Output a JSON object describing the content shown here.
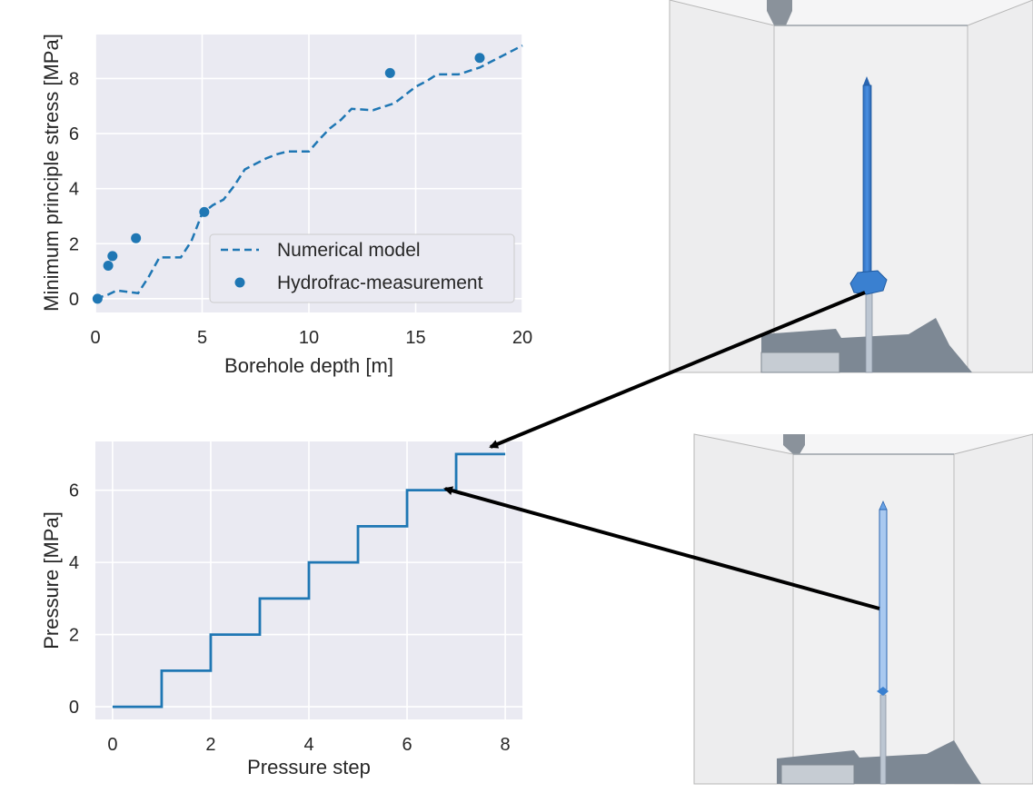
{
  "chart_data": [
    {
      "type": "line",
      "xlabel": "Borehole depth [m]",
      "ylabel": "Minimum principle stress [MPa]",
      "xlim": [
        0,
        20
      ],
      "ylim": [
        -0.5,
        9.6
      ],
      "xticks": [
        "0",
        "5",
        "10",
        "15",
        "20"
      ],
      "yticks": [
        "0",
        "2",
        "4",
        "6",
        "8"
      ],
      "grid": true,
      "legend_position": "lower-right",
      "series": [
        {
          "name": "Numerical model",
          "style": "dashed",
          "x": [
            0,
            0.6,
            1.0,
            1.5,
            2.0,
            2.5,
            3.0,
            3.5,
            4.0,
            4.5,
            5.0,
            5.5,
            6.0,
            6.5,
            7.0,
            7.5,
            8.0,
            8.5,
            9.0,
            10.0,
            10.5,
            11.0,
            11.5,
            12.0,
            13.0,
            14.0,
            14.5,
            15.0,
            15.5,
            16.0,
            17.0,
            18.0,
            19.0,
            20.0
          ],
          "y": [
            0.0,
            0.15,
            0.3,
            0.25,
            0.2,
            0.8,
            1.5,
            1.5,
            1.5,
            2.1,
            3.1,
            3.4,
            3.6,
            4.1,
            4.7,
            4.9,
            5.1,
            5.25,
            5.35,
            5.35,
            5.8,
            6.2,
            6.5,
            6.9,
            6.85,
            7.1,
            7.4,
            7.7,
            7.9,
            8.15,
            8.15,
            8.4,
            8.8,
            9.2
          ]
        },
        {
          "name": "Hydrofrac-measurement",
          "style": "markers",
          "x": [
            0.1,
            0.6,
            0.8,
            1.9,
            5.1,
            13.8,
            18.0
          ],
          "y": [
            0.0,
            1.2,
            1.55,
            2.2,
            3.15,
            8.2,
            8.75
          ]
        }
      ],
      "color": "#1f77b4",
      "background": "#eaeaf2"
    },
    {
      "type": "line",
      "xlabel": "Pressure step",
      "ylabel": "Pressure [MPa]",
      "xlim": [
        -0.35,
        8.35
      ],
      "ylim": [
        -0.35,
        7.35
      ],
      "xticks": [
        "0",
        "2",
        "4",
        "6",
        "8"
      ],
      "yticks": [
        "0",
        "2",
        "4",
        "6"
      ],
      "grid": true,
      "series": [
        {
          "style": "step",
          "x": [
            0,
            1,
            1,
            2,
            2,
            3,
            3,
            4,
            4,
            5,
            5,
            6,
            6,
            7,
            7,
            8
          ],
          "y": [
            0,
            0,
            1,
            1,
            2,
            2,
            3,
            3,
            4,
            4,
            5,
            5,
            6,
            6,
            7,
            7
          ]
        }
      ],
      "color": "#1f77b4",
      "background": "#eaeaf2"
    }
  ],
  "renders": {
    "top": {
      "description_icon": "borehole-fracture-render"
    },
    "bottom": {
      "description_icon": "borehole-pressurized-render"
    }
  }
}
